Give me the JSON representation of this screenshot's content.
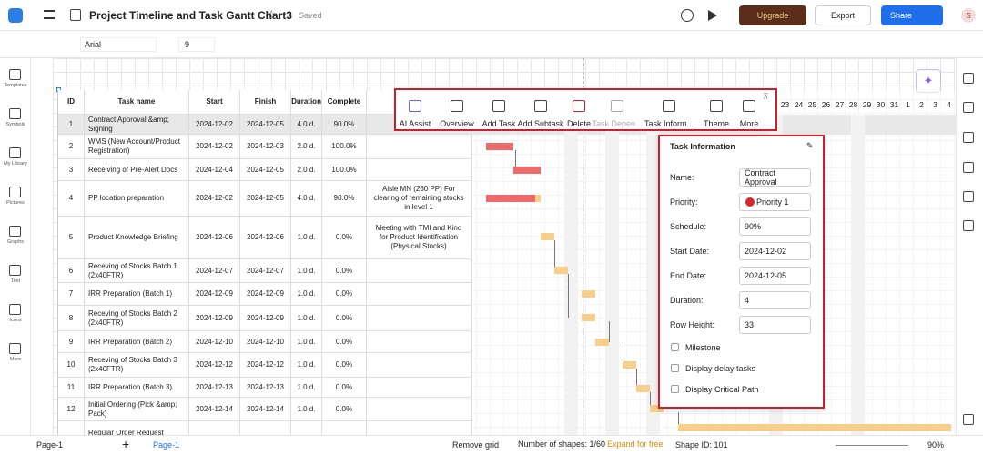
{
  "header": {
    "title": "Project Timeline and Task Gantt Chart3",
    "status": "Saved",
    "upgrade": "Upgrade",
    "export": "Export",
    "share": "Share",
    "avatar": "S"
  },
  "format_toolbar": {
    "font": "Arial",
    "size": "9"
  },
  "sidebar": [
    "Templates",
    "Symbols",
    "My Library",
    "Pictures",
    "Graphs",
    "Text",
    "Icons",
    "More"
  ],
  "table": {
    "headers": [
      "ID",
      "Task name",
      "Start",
      "Finish",
      "Duration",
      "Complete"
    ],
    "rows": [
      {
        "id": "1",
        "name": "Contract Approval &amp; Signing",
        "start": "2024-12-02",
        "finish": "2024-12-05",
        "duration": "4.0 d.",
        "complete": "90.0%"
      },
      {
        "id": "2",
        "name": "WMS (New Account/Product Registration)",
        "start": "2024-12-02",
        "finish": "2024-12-03",
        "duration": "2.0 d.",
        "complete": "100.0%"
      },
      {
        "id": "3",
        "name": "Receiving of Pre-Alert Docs",
        "start": "2024-12-04",
        "finish": "2024-12-05",
        "duration": "2.0 d.",
        "complete": "100.0%"
      },
      {
        "id": "4",
        "name": "PP location preparation",
        "start": "2024-12-02",
        "finish": "2024-12-05",
        "duration": "4.0 d.",
        "complete": "90.0%",
        "note": "Aisle MN  (260 PP) For clearing of remaining stocks in level 1"
      },
      {
        "id": "5",
        "name": "Product Knowledge Briefing",
        "start": "2024-12-06",
        "finish": "2024-12-06",
        "duration": "1.0 d.",
        "complete": "0.0%",
        "note": "Meeting with TMI and Kino for Product Identification (Physical Stocks)"
      },
      {
        "id": "6",
        "name": "Receving of Stocks Batch 1 (2x40FTR)",
        "start": "2024-12-07",
        "finish": "2024-12-07",
        "duration": "1.0 d.",
        "complete": "0.0%"
      },
      {
        "id": "7",
        "name": "IRR Preparation (Batch 1)",
        "start": "2024-12-09",
        "finish": "2024-12-09",
        "duration": "1.0 d.",
        "complete": "0.0%"
      },
      {
        "id": "8",
        "name": "Receving of Stocks Batch 2 (2x40FTR)",
        "start": "2024-12-09",
        "finish": "2024-12-09",
        "duration": "1.0 d.",
        "complete": "0.0%"
      },
      {
        "id": "9",
        "name": "IRR Preparation (Batch 2)",
        "start": "2024-12-10",
        "finish": "2024-12-10",
        "duration": "1.0 d.",
        "complete": "0.0%"
      },
      {
        "id": "10",
        "name": "Receving of Stocks Batch 3 (2x40FTR)",
        "start": "2024-12-12",
        "finish": "2024-12-12",
        "duration": "1.0 d.",
        "complete": "0.0%"
      },
      {
        "id": "11",
        "name": "IRR Preparation (Batch 3)",
        "start": "2024-12-13",
        "finish": "2024-12-13",
        "duration": "1.0 d.",
        "complete": "0.0%"
      },
      {
        "id": "12",
        "name": "Initial Ordering (Pick &amp; Pack)",
        "start": "2024-12-14",
        "finish": "2024-12-14",
        "duration": "1.0 d.",
        "complete": "0.0%"
      },
      {
        "name": "Regular Order Request"
      }
    ]
  },
  "gantt": {
    "days": [
      "23",
      "24",
      "25",
      "26",
      "27",
      "28",
      "29",
      "30",
      "31",
      "1",
      "2",
      "3",
      "4"
    ]
  },
  "floating_toolbar": [
    "AI Assist",
    "Overview",
    "Add Task",
    "Add Subtask",
    "Delete",
    "Task Depen...",
    "Task Inform...",
    "Theme",
    "More"
  ],
  "task_panel": {
    "title": "Task Information",
    "fields": [
      {
        "label": "Name:",
        "value": "Contract Approval"
      },
      {
        "label": "Priority:",
        "value": "Priority 1"
      },
      {
        "label": "Schedule:",
        "value": "90%"
      },
      {
        "label": "Start Date:",
        "value": "2024-12-02"
      },
      {
        "label": "End Date:",
        "value": "2024-12-05"
      },
      {
        "label": "Duration:",
        "value": "4"
      },
      {
        "label": "Row Height:",
        "value": "33"
      }
    ],
    "options": [
      "Milestone",
      "Display delay tasks",
      "Display Critical Path"
    ]
  },
  "status_bar": {
    "page_tab": "Page-1",
    "active_page": "Page-1",
    "remove_grid": "Remove grid",
    "shapes": "Number of shapes: 1/60",
    "expand": "Expand for free",
    "shape_id": "Shape ID: 101",
    "zoom": "90%"
  }
}
